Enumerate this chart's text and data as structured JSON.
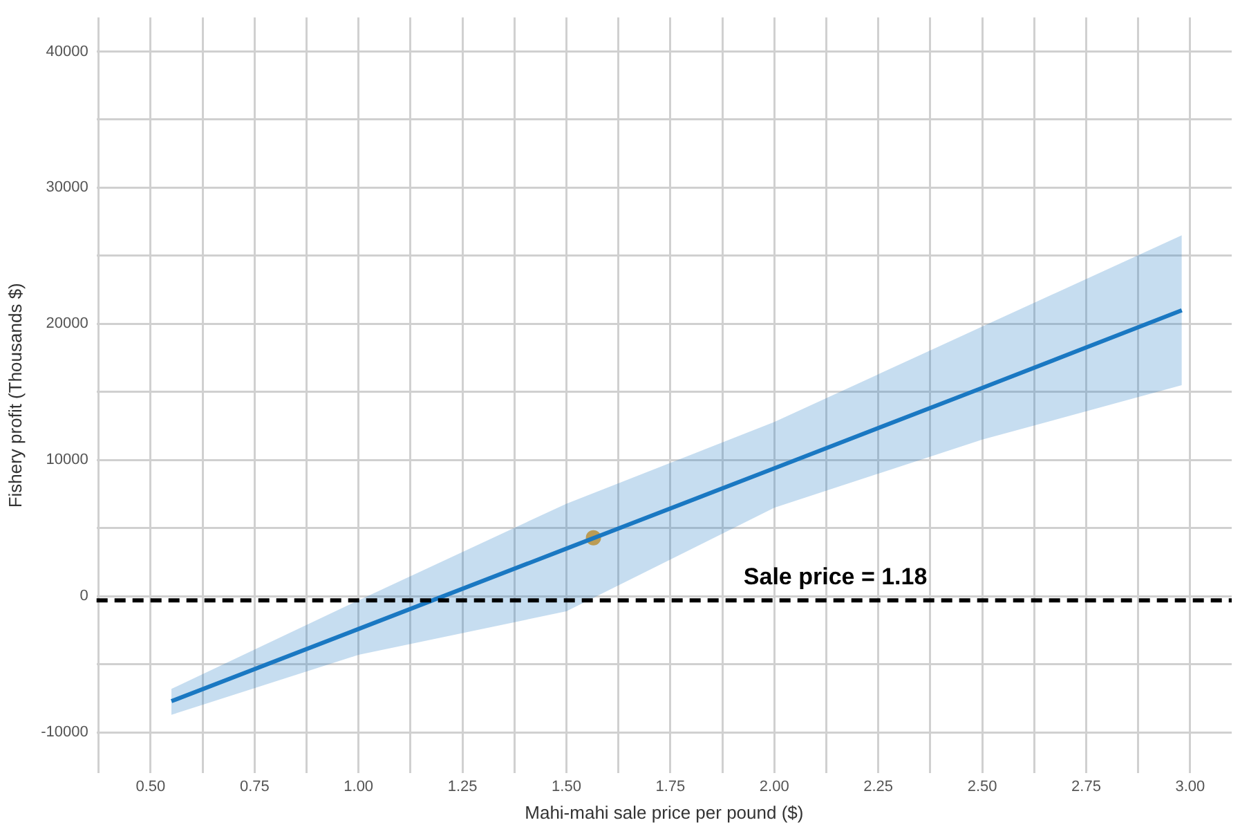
{
  "chart_data": {
    "type": "line",
    "xlabel": "Mahi-mahi sale price per pound ($)",
    "ylabel": "Fishery profit (Thousands $)",
    "xlim": [
      0.37,
      3.1
    ],
    "ylim": [
      -13000,
      42500
    ],
    "xticks": [
      {
        "value": 0.375,
        "label": null
      },
      {
        "value": 0.5,
        "label": "0.50"
      },
      {
        "value": 0.625,
        "label": null
      },
      {
        "value": 0.75,
        "label": "0.75"
      },
      {
        "value": 0.875,
        "label": null
      },
      {
        "value": 1.0,
        "label": "1.00"
      },
      {
        "value": 1.125,
        "label": null
      },
      {
        "value": 1.25,
        "label": "1.25"
      },
      {
        "value": 1.375,
        "label": null
      },
      {
        "value": 1.5,
        "label": "1.50"
      },
      {
        "value": 1.625,
        "label": null
      },
      {
        "value": 1.75,
        "label": "1.75"
      },
      {
        "value": 1.875,
        "label": null
      },
      {
        "value": 2.0,
        "label": "2.00"
      },
      {
        "value": 2.125,
        "label": null
      },
      {
        "value": 2.25,
        "label": "2.25"
      },
      {
        "value": 2.375,
        "label": null
      },
      {
        "value": 2.5,
        "label": "2.50"
      },
      {
        "value": 2.625,
        "label": null
      },
      {
        "value": 2.75,
        "label": "2.75"
      },
      {
        "value": 2.875,
        "label": null
      },
      {
        "value": 3.0,
        "label": "3.00"
      }
    ],
    "yticks": [
      -10000,
      {
        "value": -5000,
        "label": null
      },
      0,
      {
        "value": 5000,
        "label": null
      },
      10000,
      {
        "value": 15000,
        "label": null
      },
      20000,
      {
        "value": 25000,
        "label": null
      },
      30000,
      {
        "value": 35000,
        "label": null
      },
      40000
    ],
    "grid": true,
    "legend": false,
    "series": [
      {
        "color": "#1a78c2",
        "marker": "none",
        "x": [
          0.55,
          1.0,
          1.5,
          2.0,
          2.5,
          2.98
        ],
        "values": [
          -7700,
          -2400,
          3500,
          9400,
          15300,
          21000
        ],
        "lower": [
          -8700,
          -4300,
          -1100,
          6500,
          11500,
          15500
        ],
        "upper": [
          -6800,
          -300,
          6800,
          12800,
          19800,
          26500
        ]
      },
      {
        "type": "scatter",
        "color": "#f0a830",
        "marker": "circle",
        "x": [
          1.565
        ],
        "values": [
          4300
        ]
      }
    ],
    "ref_lines": [
      {
        "axis": "y",
        "value": -300,
        "color": "#000000",
        "line_style": "dashed"
      }
    ],
    "annotations": [
      "Sale price = 1.18"
    ]
  }
}
